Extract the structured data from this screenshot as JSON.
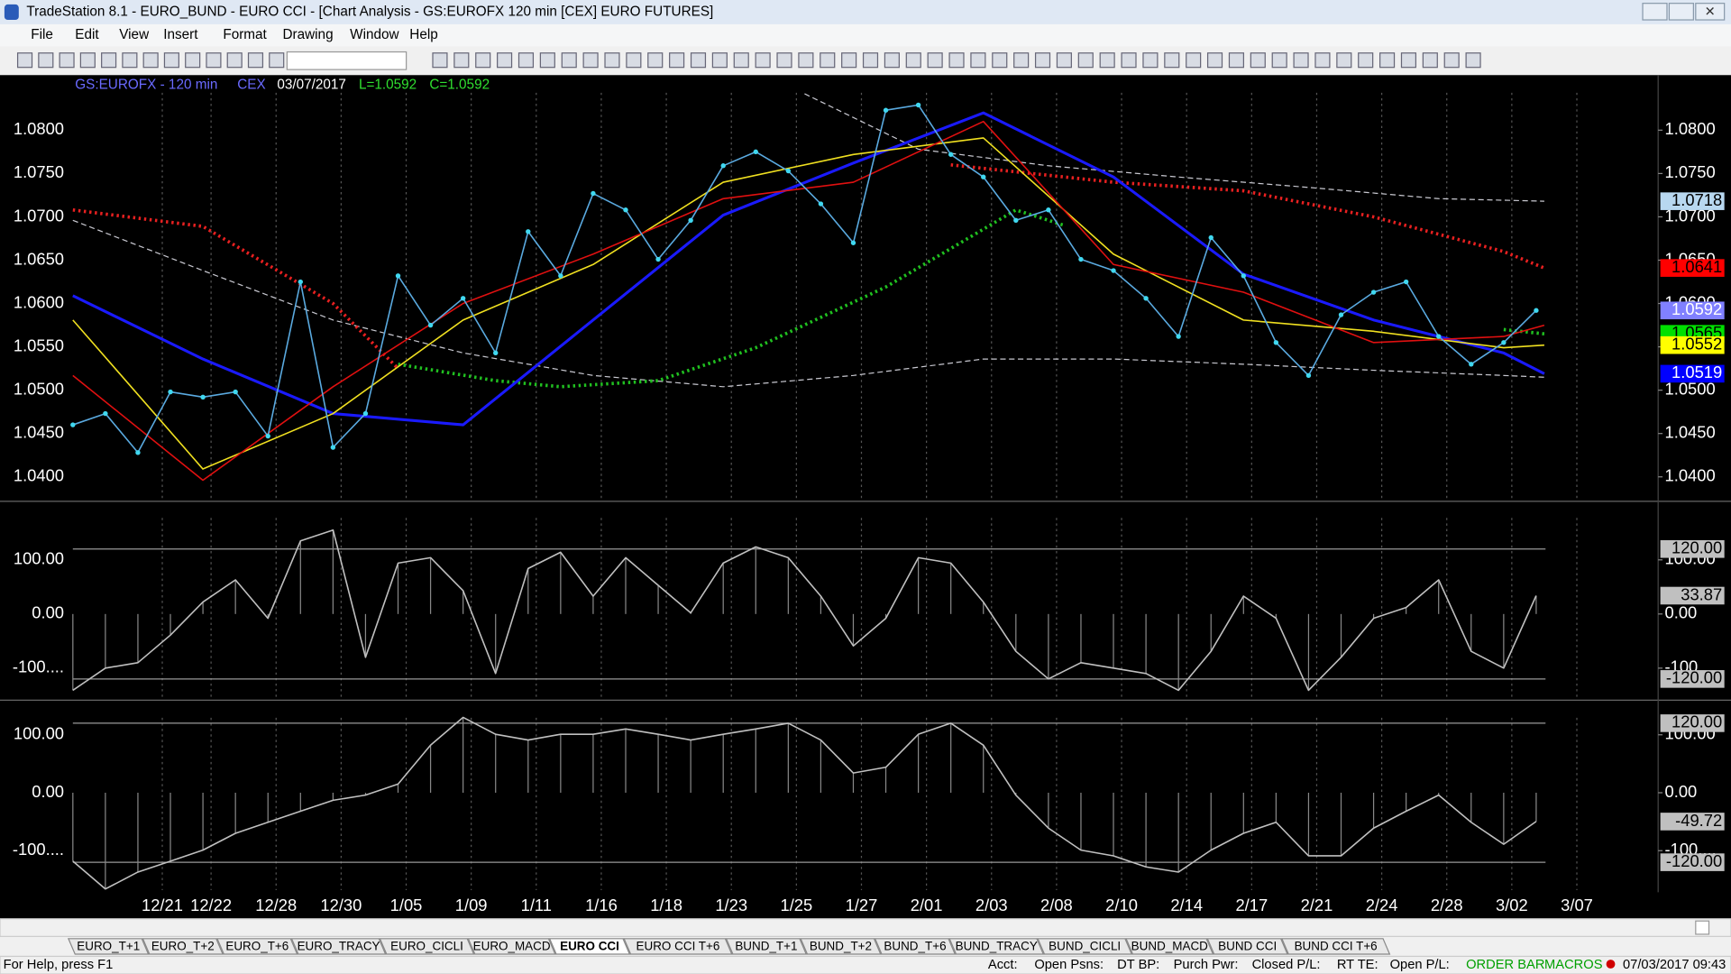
{
  "window": {
    "title": "TradeStation 8.1 - EURO_BUND - EURO CCI - [Chart Analysis - GS:EUROFX  120 min  [CEX] EURO FUTURES]"
  },
  "menu": [
    "File",
    "Edit",
    "View",
    "Insert",
    "Format",
    "Drawing",
    "Window",
    "Help"
  ],
  "chart_data": [
    {
      "type": "line",
      "symbol": "GS:EUROFX - 120 min",
      "exchange": "CEX",
      "date": "03/07/2017",
      "last": "L=1.0592",
      "close": "C=1.0592",
      "xlim": [
        0,
        195
      ],
      "xticks": [
        {
          "value": 11,
          "label": "12/21"
        },
        {
          "value": 17,
          "label": "12/22"
        },
        {
          "value": 25,
          "label": "12/28"
        },
        {
          "value": 33,
          "label": "12/30"
        },
        {
          "value": 41,
          "label": "1/05"
        },
        {
          "value": 49,
          "label": "1/09"
        },
        {
          "value": 57,
          "label": "1/11"
        },
        {
          "value": 65,
          "label": "1/16"
        },
        {
          "value": 73,
          "label": "1/18"
        },
        {
          "value": 81,
          "label": "1/23"
        },
        {
          "value": 89,
          "label": "1/25"
        },
        {
          "value": 97,
          "label": "1/27"
        },
        {
          "value": 105,
          "label": "2/01"
        },
        {
          "value": 113,
          "label": "2/03"
        },
        {
          "value": 121,
          "label": "2/08"
        },
        {
          "value": 129,
          "label": "2/10"
        },
        {
          "value": 137,
          "label": "2/14"
        },
        {
          "value": 145,
          "label": "2/17"
        },
        {
          "value": 153,
          "label": "2/21"
        },
        {
          "value": 161,
          "label": "2/24"
        },
        {
          "value": 169,
          "label": "2/28"
        },
        {
          "value": 177,
          "label": "3/02"
        },
        {
          "value": 185,
          "label": "3/07"
        }
      ],
      "ylim": [
        1.0373,
        1.0861
      ],
      "yticks": [
        {
          "value": 1.04,
          "label": "1.0400"
        },
        {
          "value": 1.045,
          "label": "1.0450"
        },
        {
          "value": 1.05,
          "label": "1.0500"
        },
        {
          "value": 1.055,
          "label": "1.0550"
        },
        {
          "value": 1.06,
          "label": "1.0600"
        },
        {
          "value": 1.065,
          "label": "1.0650"
        },
        {
          "value": 1.07,
          "label": "1.0700"
        },
        {
          "value": 1.075,
          "label": "1.0750"
        },
        {
          "value": 1.08,
          "label": "1.0800"
        }
      ],
      "series": [
        {
          "color": "#c8c8d0",
          "style": "dashed",
          "x": [
            0,
            16,
            32,
            48,
            64,
            80,
            96,
            112,
            128,
            144,
            160,
            176,
            181
          ],
          "values": [
            1.0696,
            1.0638,
            1.0581,
            1.0543,
            1.0517,
            1.0504,
            1.0517,
            1.0536,
            1.0536,
            1.053,
            1.0523,
            1.0517,
            1.0515
          ]
        },
        {
          "color": "#c8c8d0",
          "style": "dashed",
          "x": [
            90,
            104,
            120,
            136,
            152,
            168,
            181
          ],
          "values": [
            1.0842,
            1.0778,
            1.0759,
            1.0746,
            1.0734,
            1.0721,
            1.0718
          ]
        },
        {
          "color": "#e82020",
          "style": "dotted",
          "x": [
            0,
            16,
            32,
            40,
            44,
            108,
            128,
            144,
            160,
            176,
            181
          ],
          "values": [
            1.0708,
            1.0689,
            1.06,
            1.0525,
            null,
            1.076,
            1.074,
            1.073,
            1.07,
            1.066,
            1.0641
          ]
        },
        {
          "color": "#20c020",
          "style": "dotted",
          "x": [
            40,
            52,
            60,
            72,
            84,
            100,
            116,
            122,
            150,
            176,
            181
          ],
          "values": [
            1.053,
            1.0511,
            1.0504,
            1.0511,
            1.0549,
            1.0619,
            1.0708,
            1.069,
            null,
            1.057,
            1.0565
          ]
        },
        {
          "color": "#1a1aff",
          "style": "thick",
          "x": [
            0,
            16,
            32,
            48,
            64,
            80,
            96,
            112,
            128,
            144,
            160,
            176,
            181
          ],
          "values": [
            1.0609,
            1.0536,
            1.0473,
            1.046,
            1.0581,
            1.0702,
            1.0762,
            1.082,
            1.0746,
            1.0634,
            1.0581,
            1.0543,
            1.0519
          ]
        },
        {
          "color": "#f0e020",
          "style": "solid",
          "x": [
            0,
            16,
            32,
            48,
            64,
            80,
            96,
            112,
            128,
            144,
            160,
            176,
            181
          ],
          "values": [
            1.0581,
            1.0409,
            1.0473,
            1.0581,
            1.0645,
            1.074,
            1.0772,
            1.0791,
            1.0657,
            1.0581,
            1.0568,
            1.0549,
            1.0552
          ]
        },
        {
          "color": "#e01010",
          "style": "solid",
          "x": [
            0,
            16,
            32,
            48,
            64,
            80,
            96,
            112,
            128,
            144,
            160,
            176,
            181
          ],
          "values": [
            1.0517,
            1.0396,
            1.0504,
            1.06,
            1.0657,
            1.0721,
            1.074,
            1.081,
            1.0645,
            1.0613,
            1.0555,
            1.0562,
            1.0575
          ]
        },
        {
          "color": "#40d8f0",
          "style": "dots",
          "x": [
            0,
            4,
            8,
            12,
            16,
            20,
            24,
            28,
            32,
            36,
            40,
            44,
            48,
            52,
            56,
            60,
            64,
            68,
            72,
            76,
            80,
            84,
            88,
            92,
            96,
            100,
            104,
            108,
            112,
            116,
            120,
            124,
            128,
            132,
            136,
            140,
            144,
            148,
            152,
            156,
            160,
            164,
            168,
            172,
            176,
            180
          ],
          "values": [
            1.046,
            1.0473,
            1.0428,
            1.0498,
            1.0492,
            1.0498,
            1.0447,
            1.0625,
            1.0434,
            1.0473,
            1.0632,
            1.0575,
            1.0606,
            1.0543,
            1.0683,
            1.0632,
            1.0727,
            1.0708,
            1.0651,
            1.0696,
            1.0759,
            1.0775,
            1.0753,
            1.0715,
            1.067,
            1.0823,
            1.0829,
            1.0772,
            1.0746,
            1.0696,
            1.0708,
            1.0651,
            1.0638,
            1.0606,
            1.0562,
            1.0676,
            1.0632,
            1.0555,
            1.0517,
            1.0587,
            1.0613,
            1.0625,
            1.0562,
            1.053,
            1.0555,
            1.0592
          ]
        }
      ],
      "tags": [
        {
          "value": 1.0718,
          "label": "1.0718",
          "color": "#b8d8f0"
        },
        {
          "value": 1.0641,
          "label": "1.0641",
          "color": "#ff0000"
        },
        {
          "value": 1.0592,
          "label": "1.0592",
          "color": "#8080ff"
        },
        {
          "value": 1.0565,
          "label": "1.0565",
          "color": "#00e000"
        },
        {
          "value": 1.0552,
          "label": "1.0552",
          "color": "#ffff00"
        },
        {
          "value": 1.0519,
          "label": "1.0519",
          "color": "#0000ff"
        }
      ]
    },
    {
      "type": "line",
      "histogram": true,
      "ylim": [
        -155,
        206
      ],
      "yticks": [
        {
          "value": 100,
          "label": "100.00"
        },
        {
          "value": 0,
          "label": "0.00"
        },
        {
          "value": -100,
          "label": "-100...."
        }
      ],
      "levels": [
        120,
        -120
      ],
      "series": [
        {
          "color": "#c0c0c0",
          "x": [
            0,
            4,
            8,
            12,
            16,
            20,
            24,
            28,
            32,
            36,
            40,
            44,
            48,
            52,
            56,
            60,
            64,
            68,
            72,
            76,
            80,
            84,
            88,
            92,
            96,
            100,
            104,
            108,
            112,
            116,
            120,
            124,
            128,
            132,
            136,
            140,
            144,
            148,
            152,
            156,
            160,
            164,
            168,
            172,
            176,
            180
          ],
          "values": [
            -141,
            -100,
            -90,
            -39,
            22,
            63,
            -8,
            135,
            155,
            -80,
            94,
            104,
            43,
            -110,
            84,
            114,
            33,
            104,
            53,
            2,
            94,
            124,
            104,
            33,
            -59,
            -8,
            104,
            94,
            22,
            -69,
            -120,
            -90,
            -100,
            -110,
            -141,
            -69,
            33,
            -8,
            -141,
            -80,
            -8,
            12,
            63,
            -69,
            -100,
            33.87
          ]
        }
      ],
      "tags": [
        {
          "value": 120,
          "label": "120.00"
        },
        {
          "value": 33.87,
          "label": "33.87"
        },
        {
          "value": -120,
          "label": "-120.00"
        }
      ]
    },
    {
      "type": "line",
      "histogram": true,
      "ylim": [
        -168,
        156
      ],
      "yticks": [
        {
          "value": 100,
          "label": "100.00"
        },
        {
          "value": 0,
          "label": "0.00"
        },
        {
          "value": -100,
          "label": "-100...."
        }
      ],
      "levels": [
        120,
        -120
      ],
      "series": [
        {
          "color": "#c0c0c0",
          "x": [
            0,
            4,
            8,
            12,
            16,
            20,
            24,
            28,
            32,
            36,
            40,
            44,
            48,
            52,
            56,
            60,
            64,
            68,
            72,
            76,
            80,
            84,
            88,
            92,
            96,
            100,
            104,
            108,
            112,
            116,
            120,
            124,
            128,
            132,
            136,
            140,
            144,
            148,
            152,
            156,
            160,
            164,
            168,
            172,
            176,
            180
          ],
          "values": [
            -118,
            -166,
            -137,
            -118,
            -99,
            -70,
            -51,
            -32,
            -13,
            -4,
            15,
            82,
            130,
            101,
            91,
            101,
            101,
            110,
            101,
            91,
            101,
            110,
            120,
            91,
            34,
            44,
            101,
            120,
            82,
            -4,
            -61,
            -99,
            -109,
            -128,
            -137,
            -99,
            -70,
            -51,
            -109,
            -109,
            -61,
            -32,
            -4,
            -51,
            -89,
            -49.72
          ]
        }
      ],
      "tags": [
        {
          "value": 120,
          "label": "120.00"
        },
        {
          "value": -49.72,
          "label": "-49.72"
        },
        {
          "value": -120,
          "label": "-120.00"
        }
      ]
    }
  ],
  "tabs": [
    "EURO_T+1",
    "EURO_T+2",
    "EURO_T+6",
    "EURO_TRACY",
    "EURO_CICLI",
    "EURO_MACD",
    "EURO CCI",
    "EURO CCI T+6",
    "BUND_T+1",
    "BUND_T+2",
    "BUND_T+6",
    "BUND_TRACY",
    "BUND_CICLI",
    "BUND_MACD",
    "BUND CCI",
    "BUND CCI T+6"
  ],
  "active_tab": 6,
  "status_bar": {
    "help": "For Help, press F1",
    "fields": [
      "Acct:",
      "Open Psns:",
      "DT BP:",
      "Purch Pwr:",
      "Closed P/L:",
      "RT TE:",
      "Open P/L:"
    ],
    "order_bar": "ORDER BAR",
    "macros": "MACROS",
    "datetime": "07/03/2017 09:43"
  }
}
